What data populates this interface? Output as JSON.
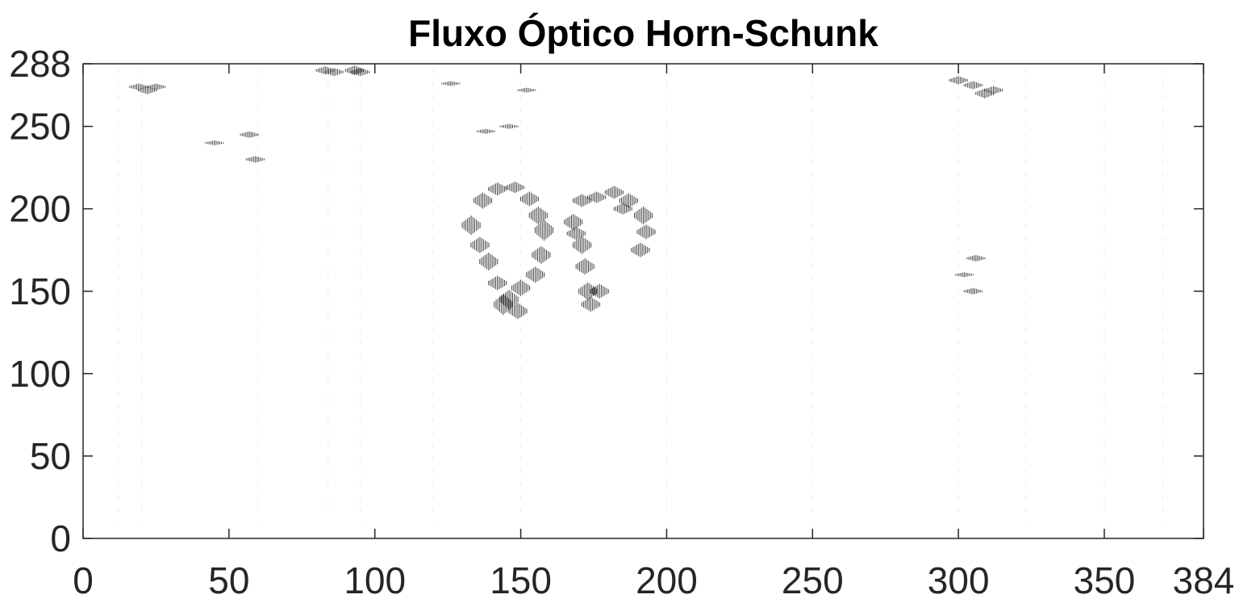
{
  "chart_data": {
    "type": "scatter",
    "title": "Fluxo Óptico Horn-Schunk",
    "xlabel": "",
    "ylabel": "",
    "xlim": [
      0,
      384
    ],
    "ylim": [
      0,
      288
    ],
    "x_ticks": [
      0,
      50,
      100,
      150,
      200,
      250,
      300,
      350,
      384
    ],
    "y_ticks": [
      0,
      50,
      100,
      150,
      200,
      250,
      288
    ],
    "grid": false,
    "colors": {
      "vectors": "#000000",
      "axes": "#262626",
      "background": "#ffffff"
    },
    "series": [
      {
        "values": [
          [
            133,
            190,
            0,
            24
          ],
          [
            137,
            205,
            0,
            20
          ],
          [
            142,
            212,
            0,
            16
          ],
          [
            148,
            213,
            0,
            14
          ],
          [
            153,
            206,
            0,
            18
          ],
          [
            156,
            196,
            0,
            22
          ],
          [
            158,
            187,
            0,
            26
          ],
          [
            157,
            172,
            0,
            22
          ],
          [
            155,
            160,
            0,
            20
          ],
          [
            150,
            152,
            0,
            20
          ],
          [
            146,
            145,
            0,
            24
          ],
          [
            142,
            155,
            0,
            18
          ],
          [
            139,
            168,
            0,
            22
          ],
          [
            136,
            178,
            0,
            20
          ],
          [
            144,
            142,
            0,
            26
          ],
          [
            149,
            138,
            0,
            20
          ],
          [
            168,
            192,
            0,
            20
          ],
          [
            171,
            205,
            0,
            16
          ],
          [
            176,
            207,
            0,
            14
          ],
          [
            182,
            210,
            0,
            16
          ],
          [
            187,
            205,
            0,
            18
          ],
          [
            192,
            196,
            0,
            22
          ],
          [
            193,
            186,
            0,
            18
          ],
          [
            191,
            175,
            0,
            18
          ],
          [
            171,
            178,
            0,
            22
          ],
          [
            172,
            165,
            0,
            20
          ],
          [
            173,
            150,
            0,
            22
          ],
          [
            174,
            142,
            0,
            18
          ],
          [
            177,
            150,
            0,
            18
          ],
          [
            169,
            185,
            0,
            16
          ],
          [
            185,
            200,
            0,
            14
          ],
          [
            83,
            284,
            0,
            10
          ],
          [
            86,
            283,
            0,
            10
          ],
          [
            93,
            284,
            0,
            12
          ],
          [
            95,
            283,
            0,
            10
          ],
          [
            19,
            274,
            0,
            8
          ],
          [
            22,
            272,
            0,
            10
          ],
          [
            25,
            274,
            0,
            8
          ],
          [
            300,
            278,
            0,
            10
          ],
          [
            305,
            275,
            0,
            10
          ],
          [
            309,
            270,
            0,
            12
          ],
          [
            312,
            272,
            0,
            10
          ],
          [
            306,
            170,
            0,
            8
          ],
          [
            305,
            150,
            0,
            8
          ],
          [
            302,
            160,
            0,
            6
          ],
          [
            138,
            247,
            0,
            6
          ],
          [
            146,
            250,
            0,
            6
          ],
          [
            152,
            272,
            0,
            6
          ],
          [
            126,
            276,
            0,
            6
          ],
          [
            57,
            245,
            0,
            8
          ],
          [
            59,
            230,
            0,
            8
          ],
          [
            45,
            240,
            0,
            6
          ]
        ]
      }
    ]
  }
}
